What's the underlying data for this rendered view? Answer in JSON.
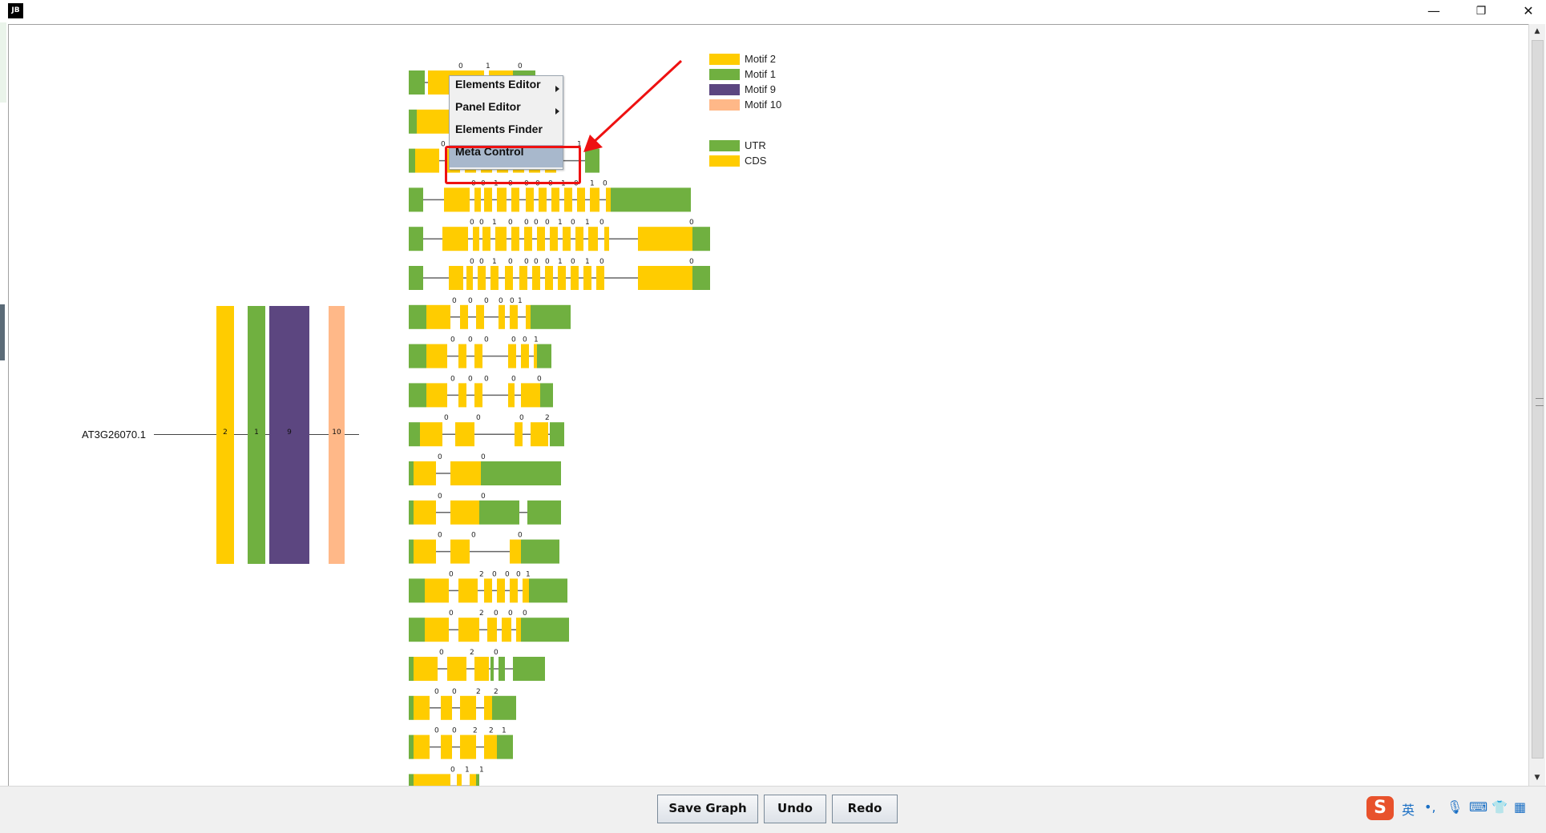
{
  "window": {
    "app_logo": "JB",
    "minimize_label": "—",
    "restore_label": "❐",
    "close_label": "✕"
  },
  "context_menu": {
    "items": [
      {
        "label": "Elements Editor",
        "submenu": true
      },
      {
        "label": "Panel Editor",
        "submenu": true
      },
      {
        "label": "Elements Finder",
        "submenu": false
      },
      {
        "label": "Meta Control",
        "submenu": false,
        "selected": true
      }
    ]
  },
  "legend": {
    "motifs": [
      {
        "label": "Motif 2",
        "color": "#FFCC00"
      },
      {
        "label": "Motif 1",
        "color": "#70B040"
      },
      {
        "label": "Motif 9",
        "color": "#5C4680"
      },
      {
        "label": "Motif 10",
        "color": "#FFB888"
      }
    ],
    "structures": [
      {
        "label": "UTR",
        "color": "#70B040"
      },
      {
        "label": "CDS",
        "color": "#FFCC00"
      }
    ]
  },
  "gene": {
    "label": "AT3G26070.1",
    "motifs": [
      {
        "number": "2",
        "color": "#FFCC00"
      },
      {
        "number": "1",
        "color": "#70B040"
      },
      {
        "number": "9",
        "color": "#5C4680"
      },
      {
        "number": "10",
        "color": "#FFB888"
      }
    ]
  },
  "structure_rows": [
    {
      "segments": [
        [
          "u",
          0,
          20
        ],
        [
          "c",
          24,
          50
        ],
        [
          "c",
          74,
          20
        ],
        [
          "c",
          100,
          30
        ],
        [
          "u",
          130,
          28
        ]
      ],
      "phases": [
        [
          "0",
          62
        ],
        [
          "1",
          96
        ],
        [
          "0",
          136
        ]
      ]
    },
    {
      "segments": [
        [
          "u",
          0,
          10
        ],
        [
          "c",
          10,
          40
        ]
      ],
      "phases": []
    },
    {
      "segments": [
        [
          "u",
          0,
          8
        ],
        [
          "c",
          8,
          30
        ],
        [
          "c",
          46,
          18
        ],
        [
          "c",
          70,
          14
        ],
        [
          "c",
          90,
          14
        ],
        [
          "c",
          110,
          14
        ],
        [
          "c",
          130,
          14
        ],
        [
          "c",
          150,
          14
        ],
        [
          "c",
          170,
          14
        ],
        [
          "u",
          220,
          18
        ]
      ],
      "phases": [
        [
          "0",
          40
        ],
        [
          "1",
          210
        ]
      ]
    },
    {
      "segments": [
        [
          "u",
          0,
          18
        ],
        [
          "c",
          44,
          32
        ],
        [
          "c",
          82,
          8
        ],
        [
          "c",
          94,
          10
        ],
        [
          "c",
          110,
          12
        ],
        [
          "c",
          128,
          10
        ],
        [
          "c",
          146,
          10
        ],
        [
          "c",
          162,
          10
        ],
        [
          "c",
          178,
          10
        ],
        [
          "c",
          194,
          10
        ],
        [
          "c",
          210,
          10
        ],
        [
          "c",
          226,
          12
        ],
        [
          "c",
          246,
          6
        ],
        [
          "u",
          252,
          100
        ]
      ],
      "phases": [
        [
          "0",
          78
        ],
        [
          "0",
          90
        ],
        [
          "1",
          106
        ],
        [
          "0",
          124
        ],
        [
          "0",
          144
        ],
        [
          "0",
          158
        ],
        [
          "0",
          174
        ],
        [
          "1",
          190
        ],
        [
          "0",
          206
        ],
        [
          "1",
          226
        ],
        [
          "0",
          242
        ]
      ]
    },
    {
      "segments": [
        [
          "u",
          0,
          18
        ],
        [
          "c",
          42,
          32
        ],
        [
          "c",
          80,
          8
        ],
        [
          "c",
          92,
          10
        ],
        [
          "c",
          108,
          14
        ],
        [
          "c",
          128,
          10
        ],
        [
          "c",
          144,
          10
        ],
        [
          "c",
          160,
          10
        ],
        [
          "c",
          176,
          10
        ],
        [
          "c",
          192,
          10
        ],
        [
          "c",
          208,
          10
        ],
        [
          "c",
          224,
          12
        ],
        [
          "c",
          244,
          6
        ],
        [
          "c",
          286,
          68
        ],
        [
          "u",
          354,
          22
        ]
      ],
      "phases": [
        [
          "0",
          76
        ],
        [
          "0",
          88
        ],
        [
          "1",
          104
        ],
        [
          "0",
          124
        ],
        [
          "0",
          144
        ],
        [
          "0",
          156
        ],
        [
          "0",
          170
        ],
        [
          "1",
          186
        ],
        [
          "0",
          202
        ],
        [
          "1",
          220
        ],
        [
          "0",
          238
        ],
        [
          "0",
          350
        ]
      ]
    },
    {
      "segments": [
        [
          "u",
          0,
          18
        ],
        [
          "c",
          50,
          18
        ],
        [
          "c",
          72,
          8
        ],
        [
          "c",
          86,
          10
        ],
        [
          "c",
          102,
          10
        ],
        [
          "c",
          120,
          10
        ],
        [
          "c",
          138,
          10
        ],
        [
          "c",
          154,
          10
        ],
        [
          "c",
          170,
          10
        ],
        [
          "c",
          186,
          10
        ],
        [
          "c",
          202,
          10
        ],
        [
          "c",
          218,
          10
        ],
        [
          "c",
          234,
          10
        ],
        [
          "c",
          286,
          68
        ],
        [
          "u",
          354,
          22
        ]
      ],
      "phases": [
        [
          "0",
          76
        ],
        [
          "0",
          88
        ],
        [
          "1",
          104
        ],
        [
          "0",
          124
        ],
        [
          "0",
          144
        ],
        [
          "0",
          156
        ],
        [
          "0",
          170
        ],
        [
          "1",
          186
        ],
        [
          "0",
          202
        ],
        [
          "1",
          220
        ],
        [
          "0",
          238
        ],
        [
          "0",
          350
        ]
      ]
    },
    {
      "segments": [
        [
          "u",
          0,
          22
        ],
        [
          "c",
          22,
          30
        ],
        [
          "c",
          64,
          10
        ],
        [
          "c",
          84,
          10
        ],
        [
          "c",
          112,
          8
        ],
        [
          "c",
          126,
          10
        ],
        [
          "c",
          146,
          6
        ],
        [
          "u",
          152,
          50
        ]
      ],
      "phases": [
        [
          "0",
          54
        ],
        [
          "0",
          74
        ],
        [
          "0",
          94
        ],
        [
          "0",
          112
        ],
        [
          "0",
          126
        ],
        [
          "1",
          136
        ]
      ]
    },
    {
      "segments": [
        [
          "u",
          0,
          22
        ],
        [
          "c",
          22,
          26
        ],
        [
          "c",
          62,
          10
        ],
        [
          "c",
          82,
          10
        ],
        [
          "c",
          124,
          10
        ],
        [
          "c",
          140,
          10
        ],
        [
          "c",
          156,
          4
        ],
        [
          "u",
          160,
          18
        ]
      ],
      "phases": [
        [
          "0",
          52
        ],
        [
          "0",
          74
        ],
        [
          "0",
          94
        ],
        [
          "0",
          128
        ],
        [
          "0",
          142
        ],
        [
          "1",
          156
        ]
      ]
    },
    {
      "segments": [
        [
          "u",
          0,
          22
        ],
        [
          "c",
          22,
          26
        ],
        [
          "c",
          62,
          10
        ],
        [
          "c",
          82,
          10
        ],
        [
          "c",
          124,
          8
        ],
        [
          "c",
          140,
          24
        ],
        [
          "u",
          164,
          16
        ]
      ],
      "phases": [
        [
          "0",
          52
        ],
        [
          "0",
          74
        ],
        [
          "0",
          94
        ],
        [
          "0",
          128
        ],
        [
          "0",
          160
        ]
      ]
    },
    {
      "segments": [
        [
          "u",
          0,
          14
        ],
        [
          "c",
          14,
          28
        ],
        [
          "c",
          58,
          24
        ],
        [
          "c",
          132,
          10
        ],
        [
          "c",
          152,
          22
        ],
        [
          "u",
          176,
          18
        ]
      ],
      "phases": [
        [
          "0",
          44
        ],
        [
          "0",
          84
        ],
        [
          "0",
          138
        ],
        [
          "2",
          170
        ]
      ]
    },
    {
      "segments": [
        [
          "u",
          0,
          6
        ],
        [
          "c",
          6,
          28
        ],
        [
          "c",
          52,
          38
        ],
        [
          "u",
          90,
          100
        ]
      ],
      "phases": [
        [
          "0",
          36
        ],
        [
          "0",
          90
        ]
      ]
    },
    {
      "segments": [
        [
          "u",
          0,
          6
        ],
        [
          "c",
          6,
          28
        ],
        [
          "c",
          52,
          36
        ],
        [
          "u",
          88,
          50
        ],
        [
          "u",
          148,
          42
        ]
      ],
      "phases": [
        [
          "0",
          36
        ],
        [
          "0",
          90
        ]
      ]
    },
    {
      "segments": [
        [
          "u",
          0,
          6
        ],
        [
          "c",
          6,
          28
        ],
        [
          "c",
          52,
          24
        ],
        [
          "c",
          126,
          14
        ],
        [
          "u",
          140,
          48
        ]
      ],
      "phases": [
        [
          "0",
          36
        ],
        [
          "0",
          78
        ],
        [
          "0",
          136
        ]
      ]
    },
    {
      "segments": [
        [
          "u",
          0,
          20
        ],
        [
          "c",
          20,
          30
        ],
        [
          "c",
          62,
          24
        ],
        [
          "c",
          94,
          10
        ],
        [
          "c",
          110,
          10
        ],
        [
          "c",
          126,
          10
        ],
        [
          "c",
          142,
          8
        ],
        [
          "u",
          150,
          48
        ]
      ],
      "phases": [
        [
          "0",
          50
        ],
        [
          "2",
          88
        ],
        [
          "0",
          104
        ],
        [
          "0",
          120
        ],
        [
          "0",
          134
        ],
        [
          "1",
          146
        ]
      ]
    },
    {
      "segments": [
        [
          "u",
          0,
          20
        ],
        [
          "c",
          20,
          30
        ],
        [
          "c",
          62,
          26
        ],
        [
          "c",
          98,
          12
        ],
        [
          "c",
          116,
          12
        ],
        [
          "c",
          134,
          6
        ],
        [
          "u",
          140,
          60
        ]
      ],
      "phases": [
        [
          "0",
          50
        ],
        [
          "2",
          88
        ],
        [
          "0",
          106
        ],
        [
          "0",
          124
        ],
        [
          "0",
          142
        ]
      ]
    },
    {
      "segments": [
        [
          "u",
          0,
          6
        ],
        [
          "c",
          6,
          30
        ],
        [
          "c",
          48,
          24
        ],
        [
          "c",
          82,
          18
        ],
        [
          "u",
          102,
          4
        ],
        [
          "u",
          112,
          8
        ],
        [
          "u",
          130,
          40
        ]
      ],
      "phases": [
        [
          "0",
          38
        ],
        [
          "2",
          76
        ],
        [
          "0",
          106
        ]
      ]
    },
    {
      "segments": [
        [
          "u",
          0,
          6
        ],
        [
          "c",
          6,
          20
        ],
        [
          "c",
          40,
          14
        ],
        [
          "c",
          64,
          20
        ],
        [
          "c",
          94,
          10
        ],
        [
          "u",
          104,
          30
        ]
      ],
      "phases": [
        [
          "0",
          32
        ],
        [
          "0",
          54
        ],
        [
          "2",
          84
        ],
        [
          "2",
          106
        ]
      ]
    },
    {
      "segments": [
        [
          "u",
          0,
          6
        ],
        [
          "c",
          6,
          20
        ],
        [
          "c",
          40,
          14
        ],
        [
          "c",
          64,
          20
        ],
        [
          "c",
          94,
          10
        ],
        [
          "c",
          104,
          6
        ],
        [
          "u",
          110,
          20
        ]
      ],
      "phases": [
        [
          "0",
          32
        ],
        [
          "0",
          54
        ],
        [
          "2",
          80
        ],
        [
          "2",
          100
        ],
        [
          "1",
          116
        ]
      ]
    },
    {
      "segments": [
        [
          "u",
          0,
          6
        ],
        [
          "c",
          6,
          46
        ],
        [
          "c",
          60,
          6
        ],
        [
          "c",
          76,
          8
        ],
        [
          "u",
          84,
          4
        ]
      ],
      "phases": [
        [
          "0",
          52
        ],
        [
          "1",
          70
        ],
        [
          "1",
          88
        ]
      ]
    }
  ],
  "buttons": {
    "save_graph": "Save Graph",
    "undo": "Undo",
    "redo": "Redo"
  },
  "tray": {
    "ime_logo": "S",
    "ime_lang": "英"
  }
}
